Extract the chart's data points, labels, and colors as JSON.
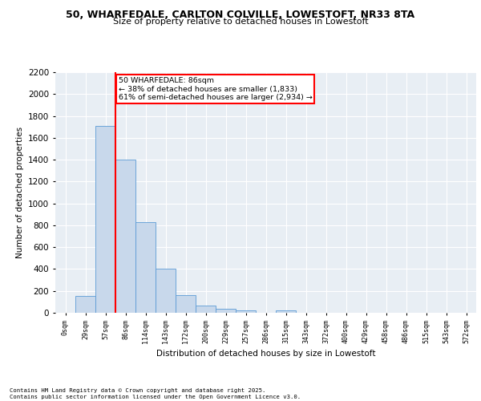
{
  "title_line1": "50, WHARFEDALE, CARLTON COLVILLE, LOWESTOFT, NR33 8TA",
  "title_line2": "Size of property relative to detached houses in Lowestoft",
  "xlabel": "Distribution of detached houses by size in Lowestoft",
  "ylabel": "Number of detached properties",
  "bar_labels": [
    "0sqm",
    "29sqm",
    "57sqm",
    "86sqm",
    "114sqm",
    "143sqm",
    "172sqm",
    "200sqm",
    "229sqm",
    "257sqm",
    "286sqm",
    "315sqm",
    "343sqm",
    "372sqm",
    "400sqm",
    "429sqm",
    "458sqm",
    "486sqm",
    "515sqm",
    "543sqm",
    "572sqm"
  ],
  "bar_values": [
    0,
    155,
    1710,
    1400,
    830,
    400,
    160,
    65,
    35,
    20,
    0,
    20,
    0,
    0,
    0,
    0,
    0,
    0,
    0,
    0,
    0
  ],
  "bar_color": "#c8d8eb",
  "bar_edge_color": "#5b9bd5",
  "vline_color": "red",
  "ylim": [
    0,
    2200
  ],
  "yticks": [
    0,
    200,
    400,
    600,
    800,
    1000,
    1200,
    1400,
    1600,
    1800,
    2000,
    2200
  ],
  "annotation_text": "50 WHARFEDALE: 86sqm\n← 38% of detached houses are smaller (1,833)\n61% of semi-detached houses are larger (2,934) →",
  "footnote": "Contains HM Land Registry data © Crown copyright and database right 2025.\nContains public sector information licensed under the Open Government Licence v3.0.",
  "bg_color": "#e8eef4",
  "grid_color": "#ffffff"
}
